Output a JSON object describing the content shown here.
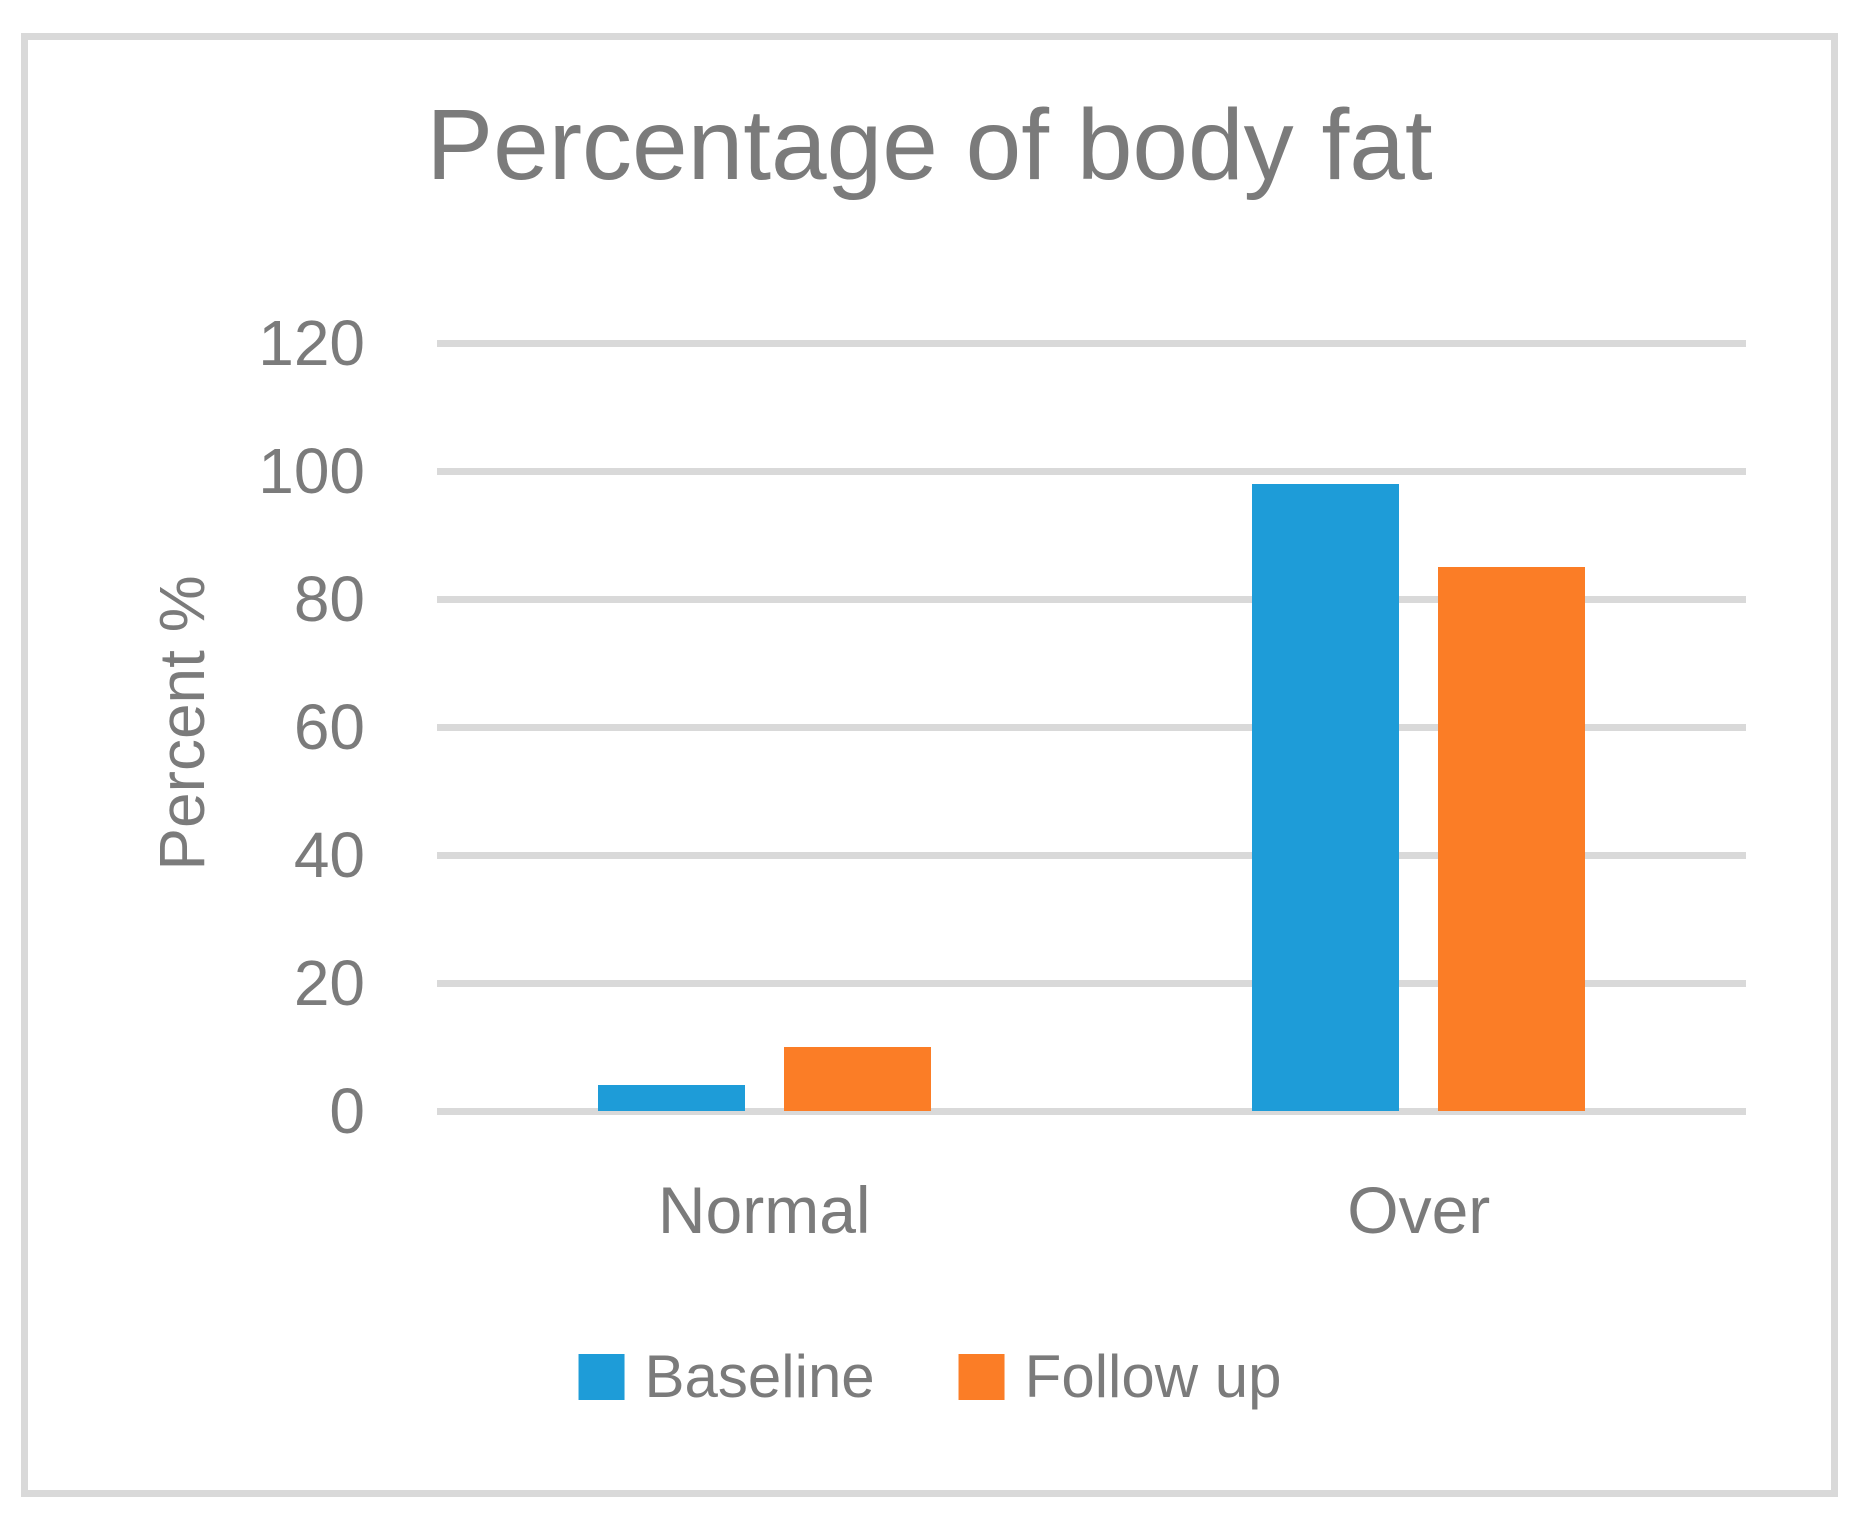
{
  "chart_data": {
    "type": "bar",
    "title": "Percentage of body fat",
    "xlabel": "",
    "ylabel": "Percent %",
    "categories": [
      "Normal",
      "Over"
    ],
    "series": [
      {
        "name": "Baseline",
        "color": "#1e9cd8",
        "values": [
          4,
          98
        ]
      },
      {
        "name": "Follow up",
        "color": "#fb7d26",
        "values": [
          10,
          85
        ]
      }
    ],
    "yticks": [
      0,
      20,
      40,
      60,
      80,
      100,
      120
    ],
    "ylim": [
      0,
      120
    ],
    "grid": "horizontal",
    "legend_position": "bottom"
  },
  "style": {
    "grid_color": "#d9d9d9",
    "frame_border_color": "#d9d9d9",
    "text_color": "#7b7b7b"
  }
}
